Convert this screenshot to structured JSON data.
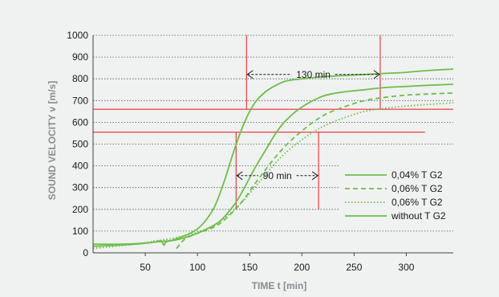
{
  "chart_data": {
    "type": "line",
    "xlabel": "TIME t [min]",
    "ylabel": "SOUND VELOCITY v [m/s]",
    "xlim": [
      0,
      345
    ],
    "ylim": [
      0,
      1000
    ],
    "xticks": [
      50,
      100,
      150,
      200,
      250,
      300
    ],
    "yticks": [
      0,
      100,
      200,
      300,
      400,
      500,
      600,
      700,
      800,
      900,
      1000
    ],
    "grid": "horizontal dotted",
    "legend_position": "right",
    "colors": {
      "series": "#6cbf4a",
      "reference": "#e8413d",
      "text": "#1a1a1a",
      "axis_title": "#8a8d91",
      "background": "#f0f1f1"
    },
    "series": [
      {
        "name": "0,04% T G2",
        "style": "solid",
        "x": [
          0,
          40,
          60,
          80,
          100,
          120,
          135,
          145,
          155,
          165,
          175,
          185,
          200,
          220,
          240,
          260,
          280,
          300,
          320,
          345
        ],
        "y": [
          30,
          40,
          50,
          60,
          90,
          140,
          220,
          300,
          390,
          470,
          550,
          610,
          670,
          720,
          740,
          750,
          760,
          765,
          770,
          775
        ]
      },
      {
        "name": "0,06% T G2",
        "style": "dashed",
        "x": [
          80,
          85,
          90,
          100,
          120,
          140,
          160,
          180,
          200,
          220,
          240,
          260,
          280,
          300,
          320,
          345
        ],
        "y": [
          20,
          50,
          70,
          90,
          130,
          220,
          350,
          470,
          560,
          630,
          670,
          700,
          715,
          725,
          730,
          735
        ]
      },
      {
        "name": "0,06% T G2",
        "style": "dotted",
        "x": [
          0,
          40,
          60,
          80,
          100,
          120,
          140,
          160,
          180,
          200,
          220,
          240,
          260,
          280,
          300,
          320,
          345
        ],
        "y": [
          20,
          40,
          55,
          70,
          95,
          140,
          220,
          330,
          440,
          520,
          580,
          620,
          650,
          665,
          675,
          682,
          690
        ]
      },
      {
        "name": "without T G2",
        "style": "solid",
        "x": [
          0,
          30,
          50,
          60,
          65,
          68,
          70,
          80,
          100,
          115,
          125,
          135,
          145,
          155,
          165,
          175,
          185,
          200,
          220,
          240,
          260,
          280,
          300,
          320,
          345
        ],
        "y": [
          40,
          40,
          45,
          50,
          55,
          35,
          50,
          65,
          110,
          200,
          320,
          470,
          600,
          690,
          740,
          770,
          790,
          800,
          810,
          815,
          820,
          825,
          830,
          838,
          845
        ]
      }
    ],
    "annotations": [
      {
        "label": "130 min",
        "y": 820,
        "x_start": 147,
        "x_end": 275
      },
      {
        "label": "90 min",
        "y": 355,
        "x_start": 137,
        "x_end": 216
      }
    ],
    "reference_lines": {
      "horizontal": [
        {
          "y": 660,
          "x_start": 0,
          "x_end": 345
        },
        {
          "y": 555,
          "x_start": 0,
          "x_end": 318
        }
      ],
      "vertical": [
        {
          "x": 147,
          "y_start": 660,
          "y_end": 1000
        },
        {
          "x": 275,
          "y_start": 660,
          "y_end": 1000
        },
        {
          "x": 137,
          "y_start": 200,
          "y_end": 555
        },
        {
          "x": 216,
          "y_start": 200,
          "y_end": 555
        }
      ]
    }
  }
}
